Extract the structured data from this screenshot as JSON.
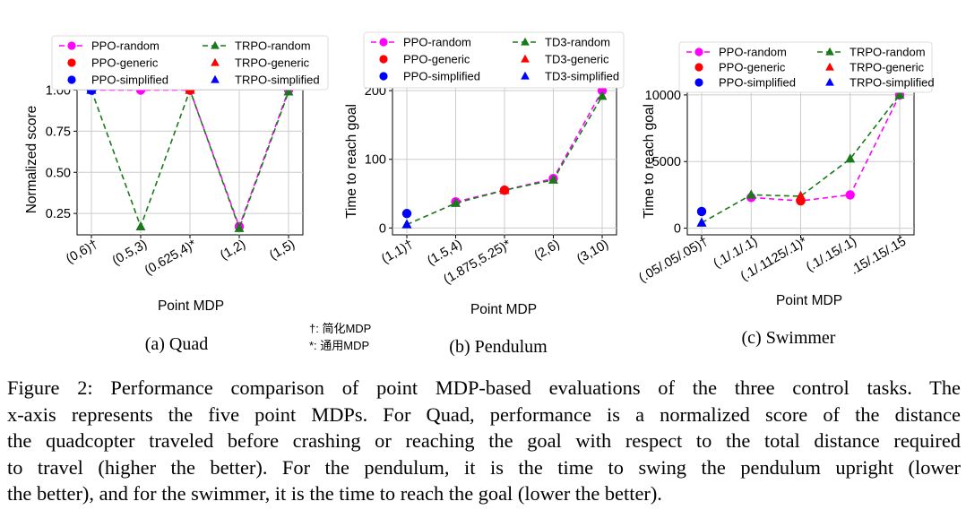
{
  "figure": {
    "colors": {
      "ppo_random": "#ff00ff",
      "ppo_generic": "#ff0000",
      "ppo_simplified": "#0000ff",
      "trpo_random": "#1a7a1a",
      "trpo_generic": "#ff0000",
      "trpo_simplified": "#0000ff",
      "grid": "#cccccc"
    },
    "notes": [
      "†: 简化MDP",
      "*: 通用MDP"
    ],
    "caption": [
      "Figure 2: Performance comparison of point MDP-based evaluations of the three control tasks. The",
      "x-axis represents the five point MDPs. For Quad, performance is a normalized score of the distance",
      "the quadcopter traveled before crashing or reaching the goal with respect to the total distance required",
      "to travel (higher the better). For the pendulum, it is the time to swing the pendulum upright (lower",
      "the better), and for the swimmer, it is the time to reach the goal (lower the better)."
    ]
  },
  "chart_data": [
    {
      "type": "line",
      "subplot_label": "(a) Quad",
      "xlabel": "Point MDP",
      "ylabel": "Normalized score",
      "categories": [
        "(0,6)†",
        "(0.5,3)",
        "(0.625,4)*",
        "(1,2)",
        "(1,5)"
      ],
      "yticks": [
        "0.25",
        "0.50",
        "0.75",
        "1.00"
      ],
      "ylim": [
        0.12,
        1.03
      ],
      "grid": true,
      "legend": [
        "PPO-random",
        "PPO-generic",
        "PPO-simplified",
        "TRPO-random",
        "TRPO-generic",
        "TRPO-simplified"
      ],
      "series": [
        {
          "name": "PPO-random",
          "values": [
            1.0,
            1.0,
            1.0,
            0.17,
            1.0
          ]
        },
        {
          "name": "TRPO-random",
          "values": [
            1.0,
            0.17,
            1.0,
            0.16,
            0.99
          ]
        }
      ],
      "points": [
        {
          "name": "PPO-simplified",
          "x": "(0,6)†",
          "y": 1.0
        },
        {
          "name": "PPO-generic",
          "x": "(0.625,4)*",
          "y": 1.0
        },
        {
          "name": "TRPO-simplified",
          "x": "(0,6)†",
          "y": 1.0
        },
        {
          "name": "TRPO-generic",
          "x": "(0.625,4)*",
          "y": 1.0
        }
      ]
    },
    {
      "type": "line",
      "subplot_label": "(b) Pendulum",
      "xlabel": "Point MDP",
      "ylabel": "Time to reach goal",
      "categories": [
        "(1,1)†",
        "(1.5,4)",
        "(1.875,5.25)*",
        "(2,6)",
        "(3,10)"
      ],
      "yticks": [
        "0",
        "100",
        "200"
      ],
      "ylim": [
        -10,
        208
      ],
      "grid": true,
      "legend": [
        "PPO-random",
        "PPO-generic",
        "PPO-simplified",
        "TD3-random",
        "TD3-generic",
        "TD3-simplified"
      ],
      "series": [
        {
          "name": "PPO-random",
          "values": [
            null,
            38,
            55,
            72,
            200
          ]
        },
        {
          "name": "TD3-random",
          "values": [
            5,
            36,
            55,
            70,
            192
          ]
        }
      ],
      "points": [
        {
          "name": "PPO-simplified",
          "x": "(1,1)†",
          "y": 21
        },
        {
          "name": "PPO-generic",
          "x": "(1.875,5.25)*",
          "y": 55
        },
        {
          "name": "TD3-simplified",
          "x": "(1,1)†",
          "y": 5
        },
        {
          "name": "TD3-generic",
          "x": "(1.875,5.25)*",
          "y": 55
        }
      ]
    },
    {
      "type": "line",
      "subplot_label": "(c) Swimmer",
      "xlabel": "Point MDP",
      "ylabel": "Time to reach goal",
      "categories": [
        "(.05/.05/.05)†",
        "(.1/.1/.1)",
        "(.1/.1125/.1)*",
        "(.1/.15/.1)",
        ".15/.15/.15"
      ],
      "yticks": [
        "0",
        "5000",
        "10000"
      ],
      "ylim": [
        -500,
        10600
      ],
      "grid": true,
      "legend": [
        "PPO-random",
        "PPO-generic",
        "PPO-simplified",
        "TRPO-random",
        "TRPO-generic",
        "TRPO-simplified"
      ],
      "series": [
        {
          "name": "PPO-random",
          "values": [
            null,
            2300,
            2050,
            2500,
            10000
          ]
        },
        {
          "name": "TRPO-random",
          "values": [
            400,
            2500,
            2400,
            5200,
            10000
          ]
        }
      ],
      "points": [
        {
          "name": "PPO-simplified",
          "x": "(.05/.05/.05)†",
          "y": 1250
        },
        {
          "name": "PPO-generic",
          "x": "(.1/.1125/.1)*",
          "y": 2050
        },
        {
          "name": "TRPO-simplified",
          "x": "(.05/.05/.05)†",
          "y": 400
        },
        {
          "name": "TRPO-generic",
          "x": "(.1/.1125/.1)*",
          "y": 2400
        }
      ]
    }
  ]
}
